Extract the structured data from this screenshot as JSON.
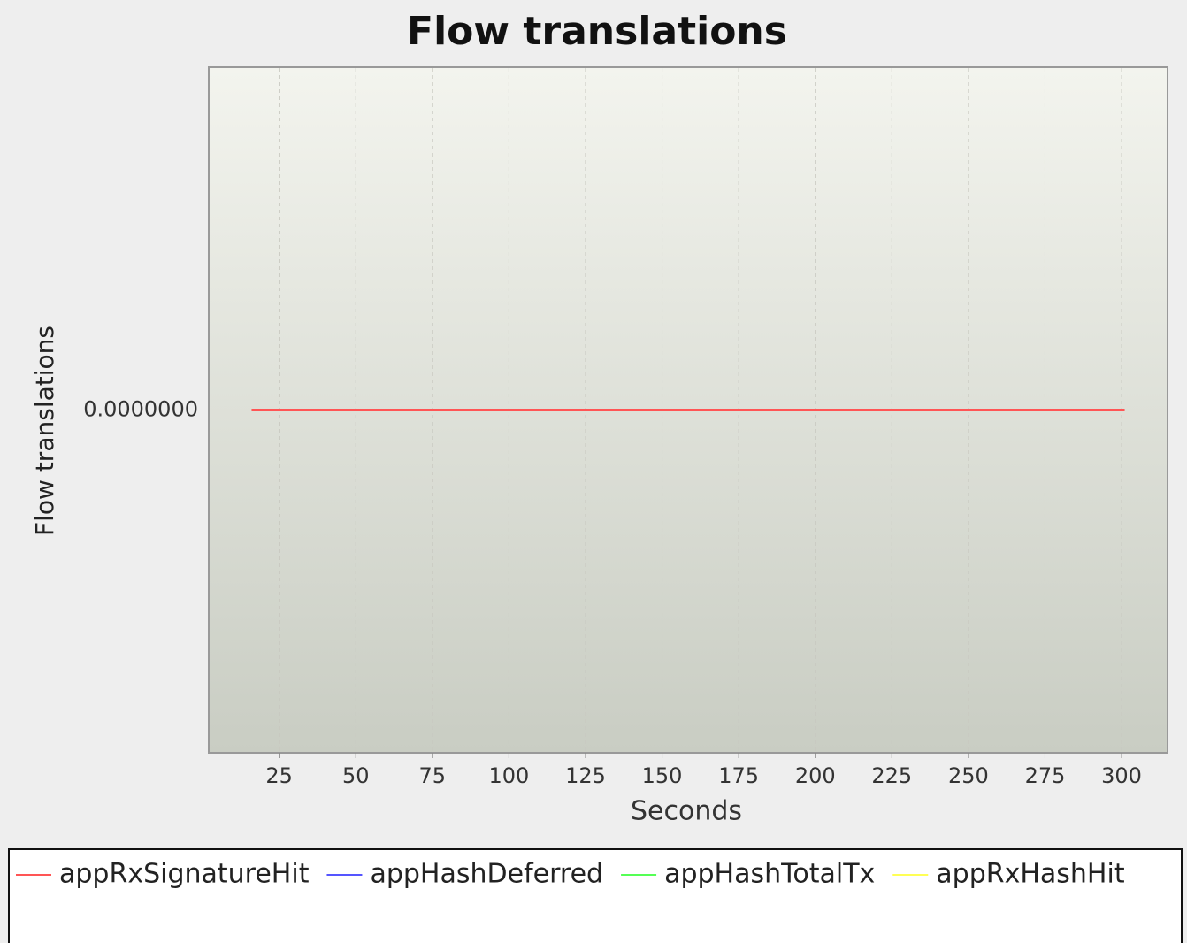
{
  "chart_data": {
    "type": "line",
    "title": "Flow translations",
    "x_label": "Seconds",
    "y_label": "Flow translations",
    "x": [
      16,
      31,
      46,
      61,
      76,
      91,
      106,
      121,
      136,
      151,
      166,
      181,
      196,
      211,
      226,
      241,
      256,
      271,
      286,
      301
    ],
    "series": [
      {
        "name": "appRxSignatureHit",
        "color": "#ff5555",
        "values": [
          0,
          0,
          0,
          0,
          0,
          0,
          0,
          0,
          0,
          0,
          0,
          0,
          0,
          0,
          0,
          0,
          0,
          0,
          0,
          0
        ]
      },
      {
        "name": "appHashDeferred",
        "color": "#5555ff",
        "values": [
          0,
          0,
          0,
          0,
          0,
          0,
          0,
          0,
          0,
          0,
          0,
          0,
          0,
          0,
          0,
          0,
          0,
          0,
          0,
          0
        ]
      },
      {
        "name": "appHashTotalTx",
        "color": "#55ff55",
        "values": [
          0,
          0,
          0,
          0,
          0,
          0,
          0,
          0,
          0,
          0,
          0,
          0,
          0,
          0,
          0,
          0,
          0,
          0,
          0,
          0
        ]
      },
      {
        "name": "appRxHashHit",
        "color": "#ffff55",
        "values": [
          0,
          0,
          0,
          0,
          0,
          0,
          0,
          0,
          0,
          0,
          0,
          0,
          0,
          0,
          0,
          0,
          0,
          0,
          0,
          0
        ]
      }
    ],
    "xlim": [
      2,
      315
    ],
    "xticks": [
      25,
      50,
      75,
      100,
      125,
      150,
      175,
      200,
      225,
      250,
      275,
      300
    ],
    "ylim": [
      -1,
      1
    ],
    "yticks": [
      {
        "value": 0,
        "label": "0.0000000"
      }
    ],
    "grid": true,
    "legend": "bottom"
  }
}
